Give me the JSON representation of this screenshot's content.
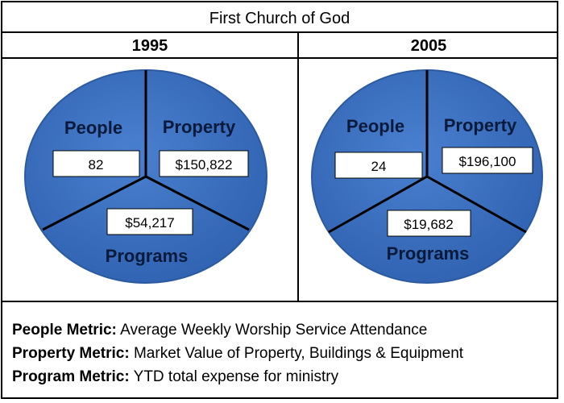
{
  "header": {
    "title": "First Church of God"
  },
  "panels": [
    {
      "year": "1995",
      "labels": {
        "people": "People",
        "property": "Property",
        "programs": "Programs"
      },
      "values": {
        "people": "82",
        "property": "$150,822",
        "programs": "$54,217"
      }
    },
    {
      "year": "2005",
      "labels": {
        "people": "People",
        "property": "Property",
        "programs": "Programs"
      },
      "values": {
        "people": "24",
        "property": "$196,100",
        "programs": "$19,682"
      }
    }
  ],
  "legend": [
    {
      "key": "People Metric:",
      "text": "Average Weekly Worship Service Attendance"
    },
    {
      "key": "Property Metric:",
      "text": "Market Value of Property, Buildings & Equipment"
    },
    {
      "key": "Program Metric:",
      "text": "YTD total expense for ministry"
    }
  ],
  "colors": {
    "pie_fill": "#3d72c4",
    "pie_edge": "#2c5aa0",
    "divider": "#000000",
    "label_text": "#0a1a3a",
    "value_box": "#ffffff"
  }
}
